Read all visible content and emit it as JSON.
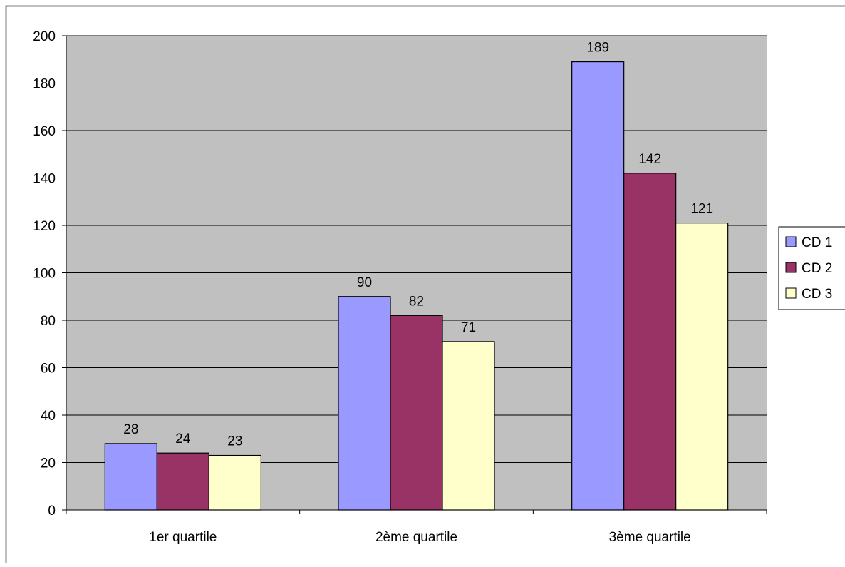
{
  "chart_data": {
    "type": "bar",
    "title": "",
    "xlabel": "",
    "ylabel": "",
    "categories": [
      "1er quartile",
      "2ème quartile",
      "3ème quartile"
    ],
    "series": [
      {
        "name": "CD 1",
        "values": [
          28,
          90,
          189
        ],
        "color": "#9999ff"
      },
      {
        "name": "CD 2",
        "values": [
          24,
          82,
          142
        ],
        "color": "#993366"
      },
      {
        "name": "CD 3",
        "values": [
          23,
          71,
          121
        ],
        "color": "#ffffcc"
      }
    ],
    "ylim": [
      0,
      200
    ],
    "yticks": [
      0,
      20,
      40,
      60,
      80,
      100,
      120,
      140,
      160,
      180,
      200
    ],
    "grid": true,
    "data_labels": true,
    "legend": {
      "position": "right"
    },
    "colors": {
      "plot_background": "#c0c0c0",
      "gridline": "#000000",
      "bar_border": "#000000"
    }
  }
}
